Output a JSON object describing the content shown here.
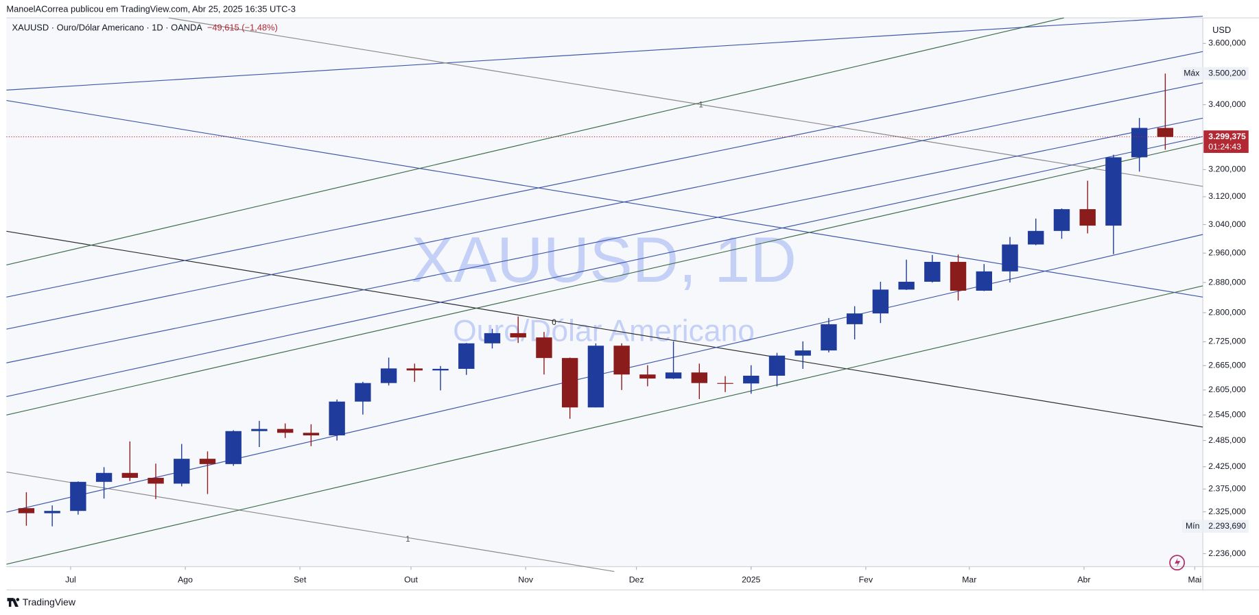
{
  "header": {
    "text": "ManoelACorrea publicou em TradingView.com, Abr 25, 2025 16:35 UTC-3"
  },
  "footer": {
    "brand": "TradingView"
  },
  "chart_data": {
    "type": "candlestick",
    "title": "XAUUSD · Ouro/Dólar Americano · 1D · OANDA",
    "subtitle": "−49,615 (−1,48%)",
    "watermark": "XAUUSD, 1D",
    "watermark_subtitle": "Ouro/Dólar Americano",
    "y_axis_unit": "USD",
    "log_scale": true,
    "grid": false,
    "up_color": "#1f3b9b",
    "down_color": "#8b1c1c",
    "annotations": [
      "1",
      "0",
      "1"
    ],
    "x": [
      1,
      2,
      3,
      4,
      5,
      6,
      7,
      8,
      9,
      10,
      11,
      12,
      13,
      14,
      15,
      16,
      17,
      18,
      19,
      20,
      21,
      22,
      23,
      24,
      25,
      26,
      27,
      28,
      29,
      30,
      31,
      32,
      33,
      34,
      35,
      36,
      37,
      38,
      39,
      40,
      41,
      42,
      43,
      44,
      45
    ],
    "open": [
      2333,
      2322,
      2327,
      2391,
      2411,
      2400,
      2387,
      2443,
      2431,
      2507,
      2512,
      2503,
      2497,
      2577,
      2622,
      2658,
      2653,
      2657,
      2721,
      2747,
      2736,
      2684,
      2563,
      2715,
      2643,
      2633,
      2648,
      2622,
      2621,
      2640,
      2690,
      2703,
      2770,
      2798,
      2861,
      2882,
      2936,
      2858,
      2910,
      2984,
      3022,
      3084,
      3037,
      3237,
      3327
    ],
    "high": [
      2368,
      2339,
      2392,
      2424,
      2483,
      2432,
      2477,
      2460,
      2509,
      2531,
      2525,
      2523,
      2582,
      2625,
      2685,
      2670,
      2664,
      2722,
      2758,
      2790,
      2750,
      2685,
      2721,
      2721,
      2666,
      2726,
      2670,
      2639,
      2666,
      2697,
      2726,
      2786,
      2817,
      2882,
      2942,
      2955,
      2956,
      2930,
      3005,
      3057,
      3086,
      3167,
      3245,
      3358,
      3500.2
    ],
    "low": [
      2295,
      2293.69,
      2319,
      2354,
      2393,
      2353,
      2381,
      2364,
      2427,
      2470,
      2491,
      2472,
      2485,
      2546,
      2616,
      2625,
      2604,
      2642,
      2708,
      2722,
      2643,
      2536,
      2563,
      2605,
      2614,
      2632,
      2583,
      2600,
      2596,
      2614,
      2657,
      2698,
      2731,
      2773,
      2860,
      2880,
      2832,
      2857,
      2880,
      2982,
      3000,
      3015,
      2957,
      3194,
      3260
    ],
    "close": [
      2322,
      2327,
      2391,
      2411,
      2400,
      2387,
      2443,
      2431,
      2507,
      2512,
      2503,
      2497,
      2577,
      2622,
      2658,
      2653,
      2657,
      2721,
      2747,
      2736,
      2684,
      2563,
      2715,
      2643,
      2633,
      2648,
      2622,
      2621,
      2640,
      2690,
      2703,
      2770,
      2798,
      2861,
      2882,
      2936,
      2858,
      2910,
      2984,
      3022,
      3084,
      3037,
      3237,
      3327,
      3299
    ],
    "xlim": [
      0.23,
      46.45
    ],
    "xticks": [
      {
        "value": 2.71,
        "label": "Jul"
      },
      {
        "value": 7.14,
        "label": "Ago"
      },
      {
        "value": 11.57,
        "label": "Set"
      },
      {
        "value": 15.86,
        "label": "Out"
      },
      {
        "value": 20.29,
        "label": "Nov"
      },
      {
        "value": 24.57,
        "label": "Dez"
      },
      29.0,
      {
        "value": 29.0,
        "label": "2025"
      },
      {
        "value": 33.43,
        "label": "Fev"
      },
      {
        "value": 37.43,
        "label": "Mar"
      },
      {
        "value": 41.86,
        "label": "Abr"
      },
      {
        "value": 46.14,
        "label": "Mai"
      }
    ],
    "ylim": [
      2209,
      3687
    ],
    "yticks": [
      {
        "value": 3600,
        "label": "3.600,000"
      },
      {
        "value": 3400,
        "label": "3.400,000"
      },
      {
        "value": 3200,
        "label": "3.200,000"
      },
      {
        "value": 3120,
        "label": "3.120,000"
      },
      {
        "value": 3040,
        "label": "3.040,000"
      },
      {
        "value": 2960,
        "label": "2.960,000"
      },
      {
        "value": 2880,
        "label": "2.880,000"
      },
      {
        "value": 2800,
        "label": "2.800,000"
      },
      {
        "value": 2725,
        "label": "2.725,000"
      },
      {
        "value": 2665,
        "label": "2.665,000"
      },
      {
        "value": 2605,
        "label": "2.605,000"
      },
      {
        "value": 2545,
        "label": "2.545,000"
      },
      {
        "value": 2485,
        "label": "2.485,000"
      },
      {
        "value": 2425,
        "label": "2.425,000"
      },
      {
        "value": 2375,
        "label": "2.375,000"
      },
      {
        "value": 2325,
        "label": "2.325,000"
      },
      {
        "value": 2236,
        "label": "2.236,000"
      }
    ],
    "max_marker": {
      "name": "Máx",
      "value": 3500.2,
      "label": "3.500,200"
    },
    "min_marker": {
      "name": "Mín",
      "value": 2293.69,
      "label": "2.293,690"
    },
    "last_price": {
      "value": 3299.375,
      "label": "3.299,375",
      "countdown": "01:24:43",
      "color": "#b22833"
    }
  }
}
